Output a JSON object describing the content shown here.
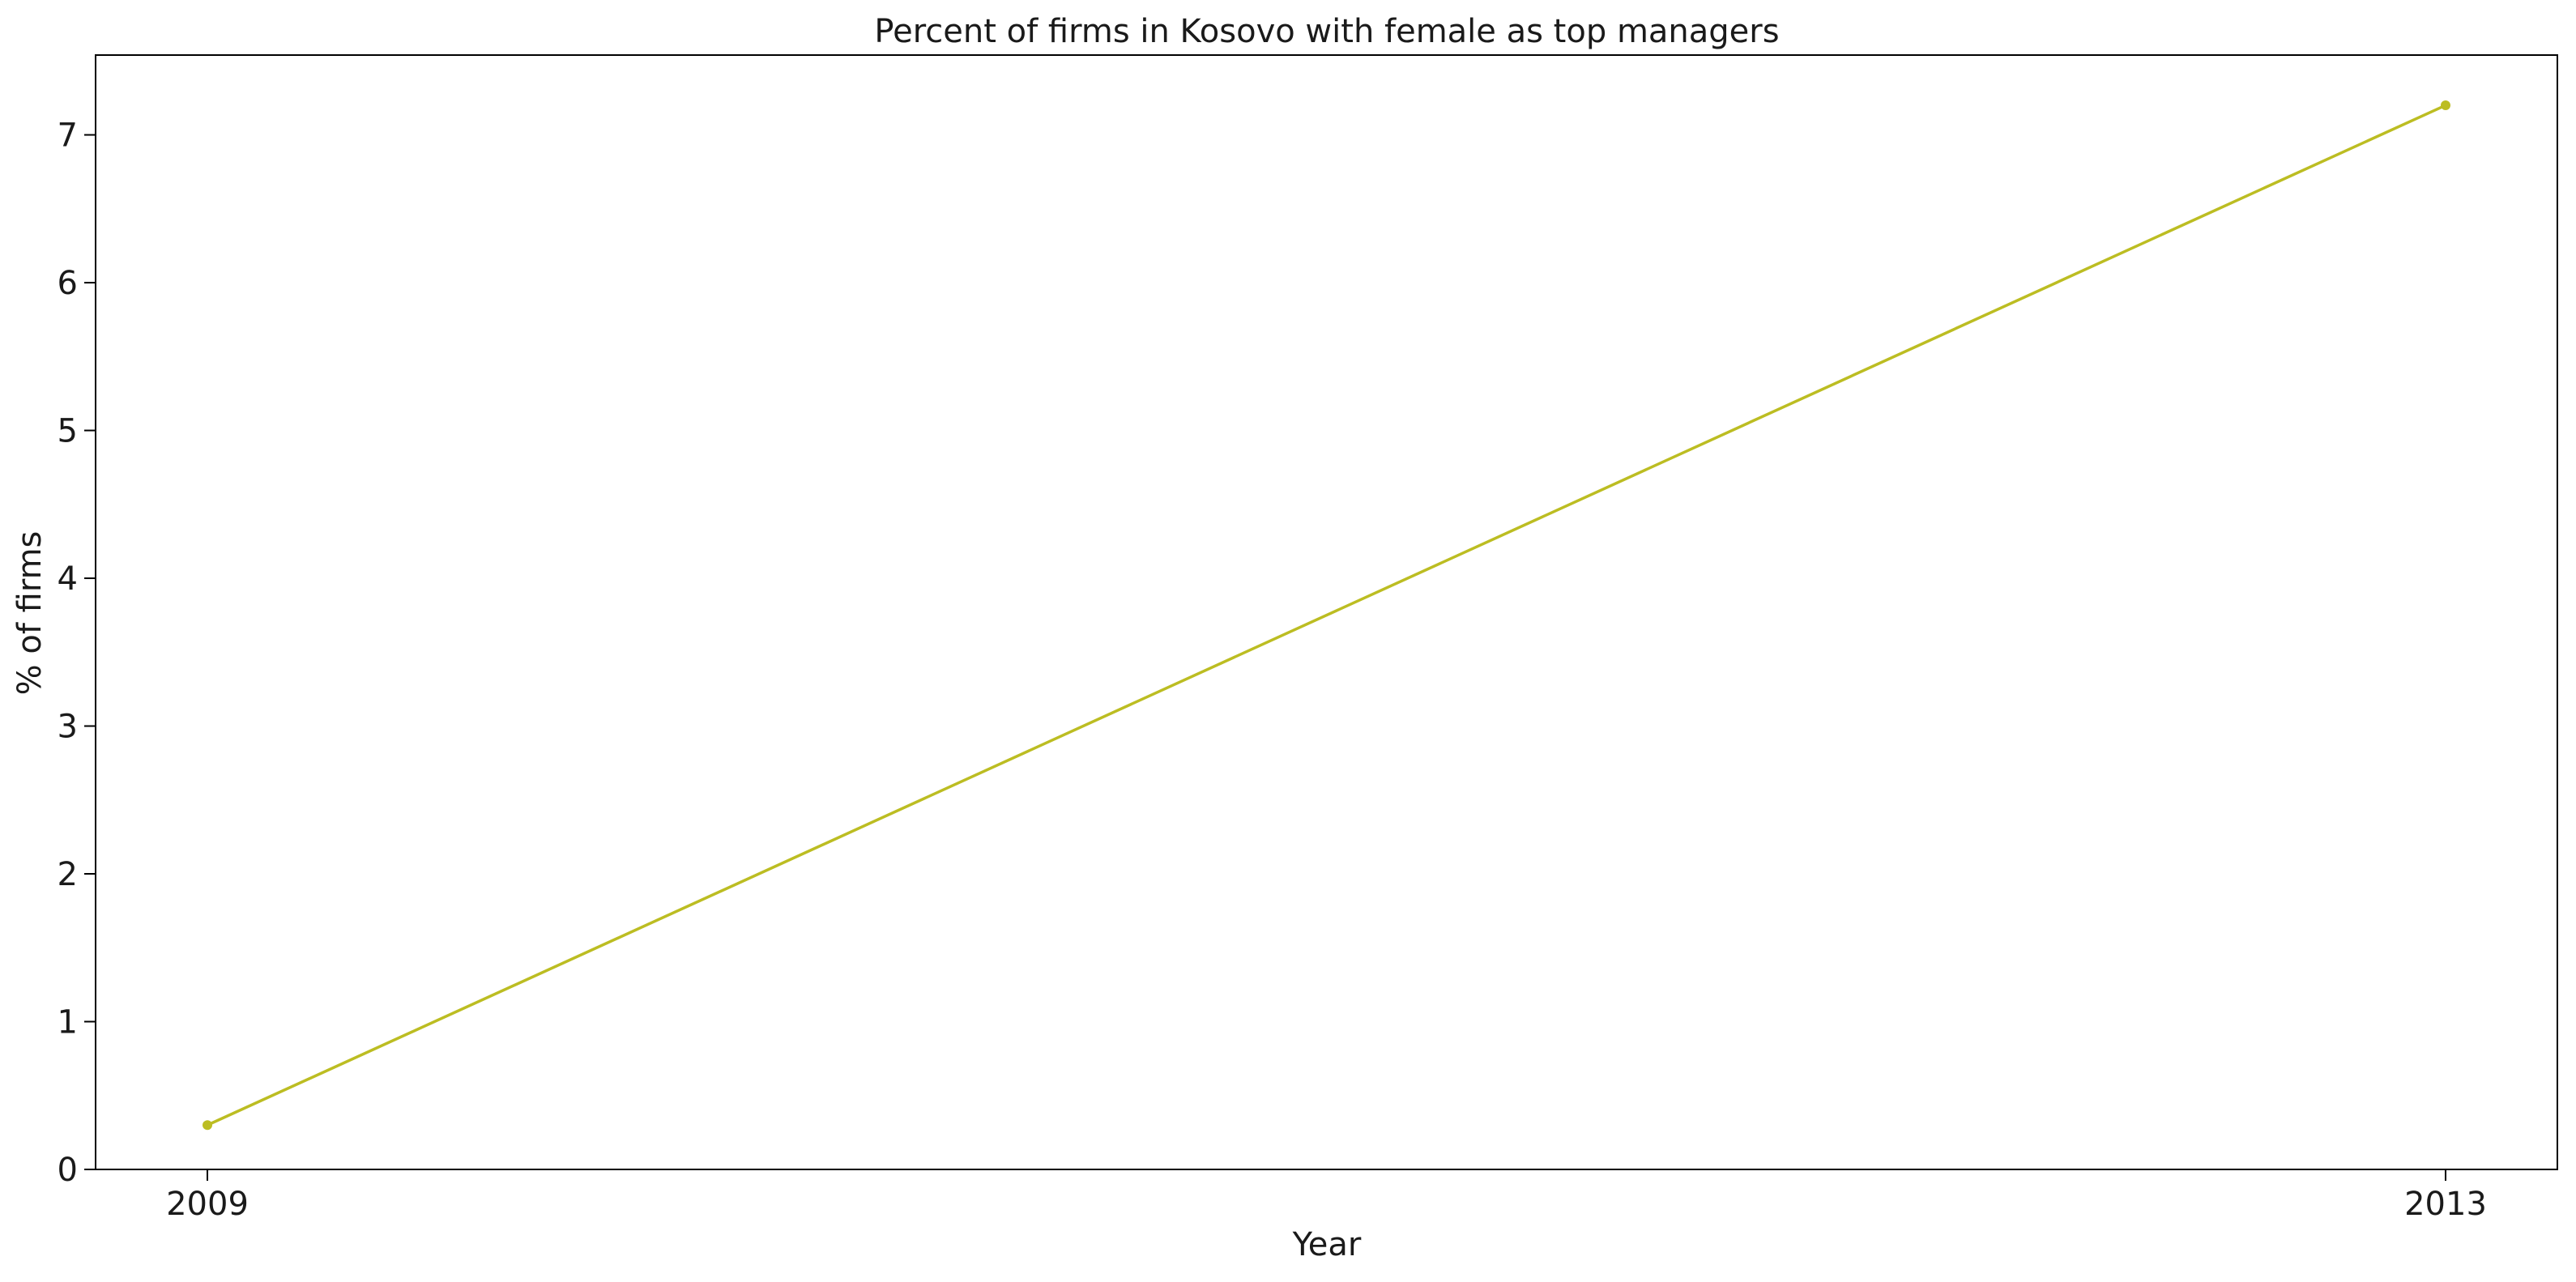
{
  "chart_data": {
    "type": "line",
    "title": "Percent of firms in Kosovo with female as top managers",
    "xlabel": "Year",
    "ylabel": "% of firms",
    "x": [
      "2009",
      "2013"
    ],
    "series": [
      {
        "values": [
          0.3,
          7.2
        ],
        "color": "#bcbd22"
      }
    ],
    "ylim": [
      0,
      7.54
    ],
    "yticks": [
      0,
      1,
      2,
      3,
      4,
      5,
      6,
      7
    ],
    "xticks": [
      "2009",
      "2013"
    ],
    "grid": false,
    "legend": "none"
  }
}
